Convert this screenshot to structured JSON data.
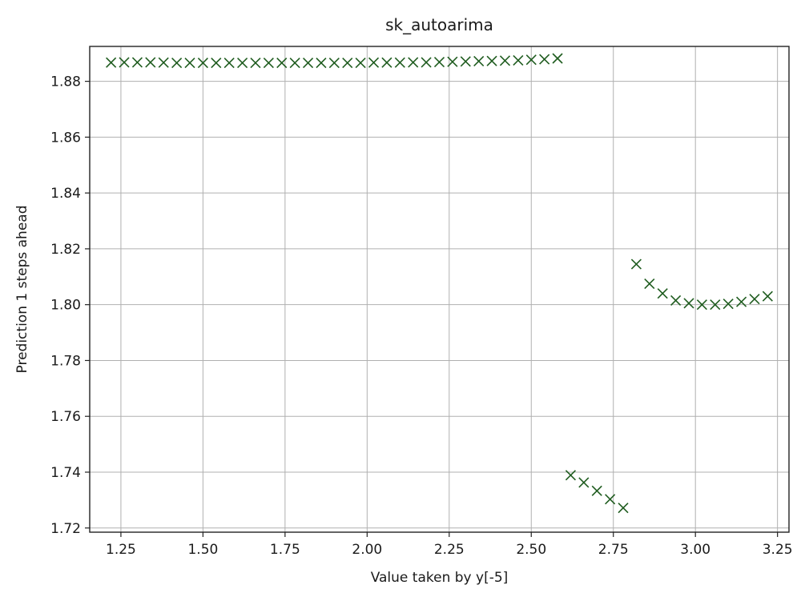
{
  "chart_data": {
    "type": "scatter",
    "title": "sk_autoarima",
    "xlabel": "Value taken by y[-5]",
    "ylabel": "Prediction 1 steps ahead",
    "xlim": [
      1.155,
      3.285
    ],
    "ylim": [
      1.7185,
      1.8925
    ],
    "xticks": [
      1.25,
      1.5,
      1.75,
      2.0,
      2.25,
      2.5,
      2.75,
      3.0,
      3.25
    ],
    "xtick_labels": [
      "1.25",
      "1.50",
      "1.75",
      "2.00",
      "2.25",
      "2.50",
      "2.75",
      "3.00",
      "3.25"
    ],
    "yticks": [
      1.72,
      1.74,
      1.76,
      1.78,
      1.8,
      1.82,
      1.84,
      1.86,
      1.88
    ],
    "ytick_labels": [
      "1.72",
      "1.74",
      "1.76",
      "1.78",
      "1.80",
      "1.82",
      "1.84",
      "1.86",
      "1.88"
    ],
    "grid": true,
    "marker": "x",
    "color": "#1f5c1f",
    "series": [
      {
        "x": [
          1.22,
          1.26,
          1.3,
          1.34,
          1.38,
          1.42,
          1.46,
          1.5,
          1.54,
          1.58,
          1.62,
          1.66,
          1.7,
          1.74,
          1.78,
          1.82,
          1.86,
          1.9,
          1.94,
          1.98,
          2.02,
          2.06,
          2.1,
          2.14,
          2.18,
          2.22,
          2.26,
          2.3,
          2.34,
          2.38,
          2.42,
          2.46,
          2.5,
          2.54,
          2.58,
          2.62,
          2.66,
          2.7,
          2.74,
          2.78,
          2.82,
          2.86,
          2.9,
          2.94,
          2.98,
          3.02,
          3.06,
          3.1,
          3.14,
          3.18,
          3.22
        ],
        "y": [
          1.8867,
          1.8868,
          1.8868,
          1.8868,
          1.8867,
          1.8866,
          1.8866,
          1.8866,
          1.8866,
          1.8866,
          1.8866,
          1.8866,
          1.8866,
          1.8866,
          1.8866,
          1.8866,
          1.8866,
          1.8866,
          1.8866,
          1.8866,
          1.8867,
          1.8867,
          1.8867,
          1.8868,
          1.8868,
          1.8869,
          1.887,
          1.8871,
          1.8872,
          1.8873,
          1.8874,
          1.8875,
          1.8877,
          1.8879,
          1.8882,
          1.7389,
          1.7363,
          1.7333,
          1.7303,
          1.7272,
          1.8145,
          1.8075,
          1.804,
          1.8015,
          1.8005,
          1.8,
          1.8,
          1.8003,
          1.801,
          1.802,
          1.803
        ]
      }
    ]
  }
}
